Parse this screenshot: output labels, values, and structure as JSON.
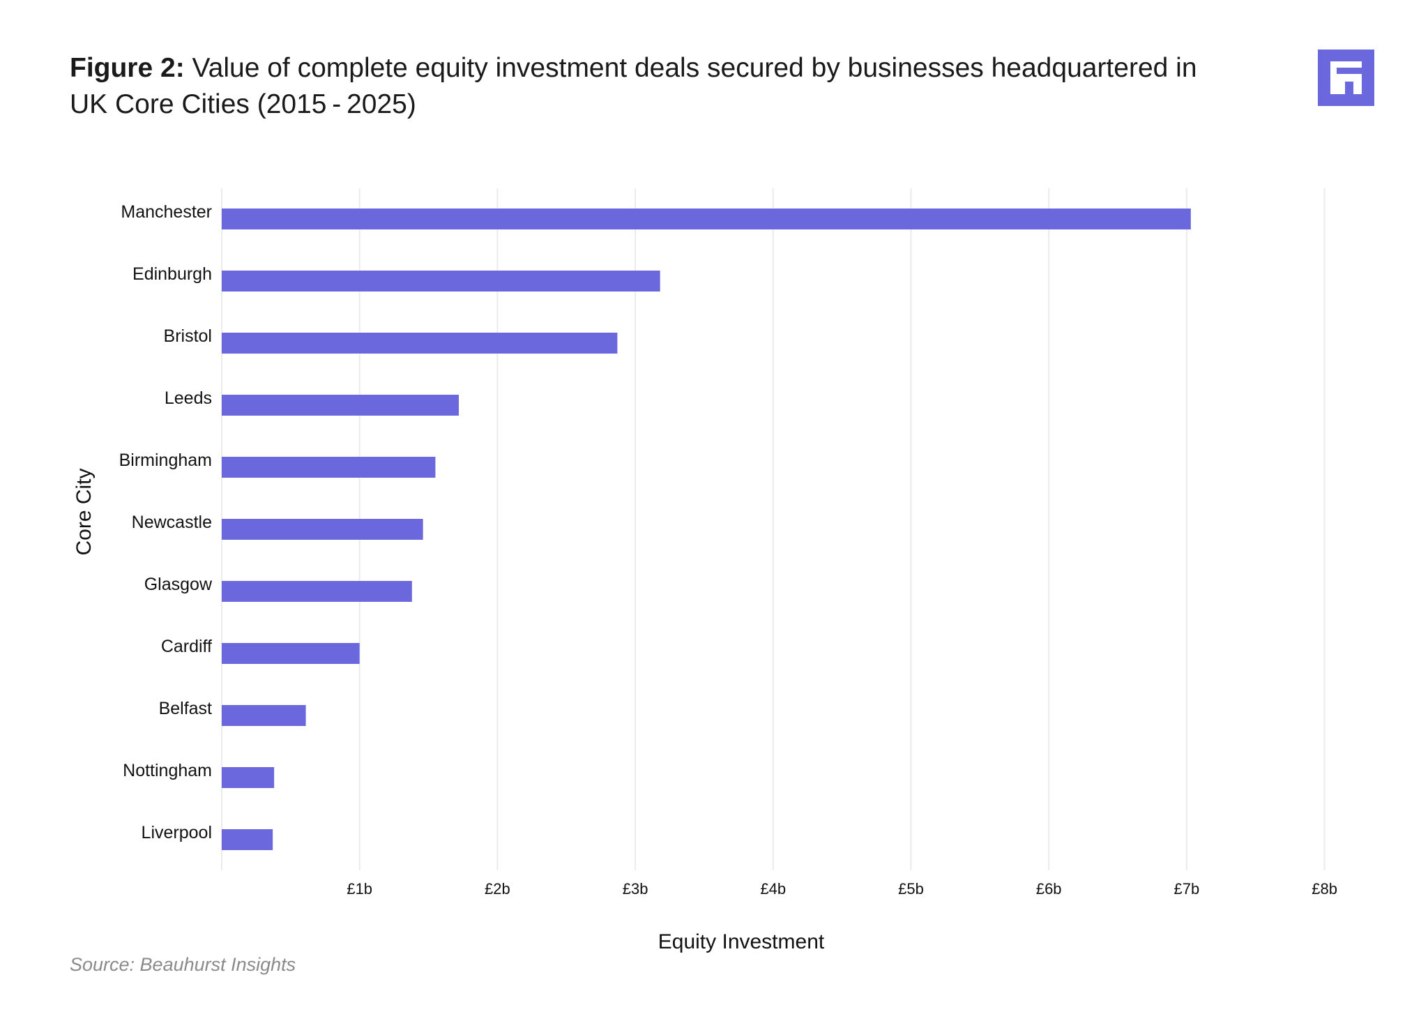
{
  "header": {
    "title_prefix": "Figure 2:",
    "title_text": "Value of complete equity investment deals secured by businesses headquartered in UK Core Cities (2015 - 2025)"
  },
  "logo": {
    "icon": "beauhurst-logo-icon",
    "color": "#6b67dd"
  },
  "source": "Source: Beauhurst Insights",
  "chart_data": {
    "type": "bar",
    "orientation": "horizontal",
    "xlabel": "Equity Investment",
    "ylabel": "Core City",
    "xlim": [
      0,
      8
    ],
    "x_ticks": [
      1,
      2,
      3,
      4,
      5,
      6,
      7,
      8
    ],
    "x_tick_labels": [
      "£1b",
      "£2b",
      "£3b",
      "£4b",
      "£5b",
      "£6b",
      "£7b",
      "£8b"
    ],
    "unit": "£b",
    "grid": "vertical",
    "bar_color": "#6b67dd",
    "categories": [
      "Manchester",
      "Edinburgh",
      "Bristol",
      "Leeds",
      "Birmingham",
      "Newcastle",
      "Glasgow",
      "Cardiff",
      "Belfast",
      "Nottingham",
      "Liverpool"
    ],
    "values": [
      7.03,
      3.18,
      2.87,
      1.72,
      1.55,
      1.46,
      1.38,
      1.0,
      0.61,
      0.38,
      0.37
    ]
  }
}
